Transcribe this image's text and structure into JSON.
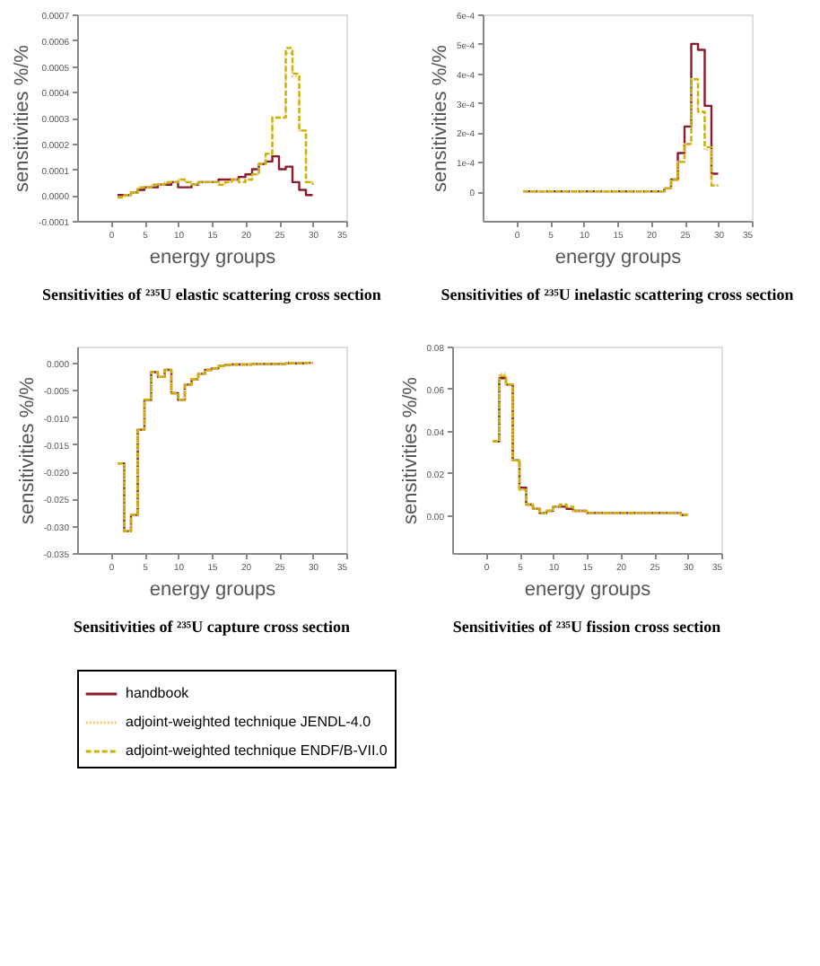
{
  "chart_data": [
    {
      "type": "step",
      "title": "Sensitivities of ²³⁵U elastic scattering cross section",
      "xlabel": "energy groups",
      "ylabel": "sensitivities %/%",
      "xlim": [
        -5,
        35
      ],
      "xticks": [
        0,
        5,
        10,
        15,
        20,
        25,
        30,
        35
      ],
      "ylim": [
        -0.0001,
        0.0007
      ],
      "yticks": [
        -0.0001,
        {
          "value": 0,
          "label": "0.0000"
        },
        0.0001,
        0.0002,
        0.0003,
        0.0004,
        0.0005,
        0.0006,
        0.0007
      ],
      "legend": "bottom",
      "x": [
        1,
        2,
        3,
        4,
        5,
        6,
        7,
        8,
        9,
        10,
        11,
        12,
        13,
        14,
        15,
        16,
        17,
        18,
        19,
        20,
        21,
        22,
        23,
        24,
        25,
        26,
        27,
        28,
        29,
        30
      ],
      "series": [
        {
          "name": "handbook",
          "color": "#8b1a2b",
          "line_style": "solid",
          "values": [
            0,
            0,
            1e-05,
            2e-05,
            3e-05,
            3e-05,
            4e-05,
            4e-05,
            5e-05,
            3e-05,
            3e-05,
            4e-05,
            5e-05,
            5e-05,
            5e-05,
            6e-05,
            6e-05,
            6e-05,
            7e-05,
            8e-05,
            0.0001,
            0.00012,
            0.00013,
            0.00015,
            0.0001,
            0.00011,
            5e-05,
            2e-05,
            0,
            0
          ]
        },
        {
          "name": "adjoint-weighted technique JENDL-4.0",
          "color": "#f2c879",
          "line_style": "dotted",
          "values": [
            -1e-05,
            0,
            1e-05,
            3e-05,
            3e-05,
            4e-05,
            4e-05,
            5e-05,
            5e-05,
            6e-05,
            5e-05,
            4e-05,
            5e-05,
            5e-05,
            5e-05,
            4e-05,
            5e-05,
            6e-05,
            5e-05,
            6e-05,
            8e-05,
            0.00012,
            0.00016,
            0.0003,
            0.0003,
            0.00055,
            0.00046,
            0.00025,
            5e-05,
            4e-05
          ]
        },
        {
          "name": "adjoint-weighted technique ENDF/B-VII.0",
          "color": "#c9b200",
          "line_style": "dashed",
          "values": [
            -1e-05,
            0,
            1e-05,
            3e-05,
            3e-05,
            4e-05,
            4e-05,
            5e-05,
            5e-05,
            6e-05,
            5e-05,
            4e-05,
            5e-05,
            5e-05,
            5e-05,
            4e-05,
            5e-05,
            6e-05,
            5e-05,
            6e-05,
            8e-05,
            0.00012,
            0.00016,
            0.0003,
            0.0003,
            0.00057,
            0.00047,
            0.00025,
            5e-05,
            4e-05
          ]
        }
      ]
    },
    {
      "type": "step",
      "title": "Sensitivities of ²³⁵U inelastic scattering cross section",
      "xlabel": "energy groups",
      "ylabel": "sensitivities %/%",
      "xlim": [
        -5,
        35
      ],
      "xticks": [
        0,
        5,
        10,
        15,
        20,
        25,
        30,
        35
      ],
      "ylim": [
        -0.0001,
        0.0006
      ],
      "yticks": [
        {
          "value": 0,
          "label": "0"
        },
        {
          "value": 0.0001,
          "label": "1e-4"
        },
        {
          "value": 0.0002,
          "label": "2e-4"
        },
        {
          "value": 0.0003,
          "label": "3e-4"
        },
        {
          "value": 0.0004,
          "label": "4e-4"
        },
        {
          "value": 0.0005,
          "label": "5e-4"
        },
        {
          "value": 0.0006,
          "label": "6e-4"
        }
      ],
      "legend": "bottom",
      "x": [
        1,
        2,
        3,
        4,
        5,
        6,
        7,
        8,
        9,
        10,
        11,
        12,
        13,
        14,
        15,
        16,
        17,
        18,
        19,
        20,
        21,
        22,
        23,
        24,
        25,
        26,
        27,
        28,
        29,
        30
      ],
      "series": [
        {
          "name": "handbook",
          "color": "#8b1a2b",
          "line_style": "solid",
          "values": [
            0,
            0,
            0,
            0,
            0,
            0,
            0,
            0,
            0,
            0,
            0,
            0,
            0,
            0,
            0,
            0,
            0,
            0,
            0,
            0,
            0,
            1e-05,
            4e-05,
            0.00013,
            0.00022,
            0.0005,
            0.00048,
            0.00029,
            6e-05,
            6e-05
          ]
        },
        {
          "name": "adjoint-weighted technique JENDL-4.0",
          "color": "#f2c879",
          "line_style": "dotted",
          "values": [
            0,
            0,
            0,
            0,
            0,
            0,
            0,
            0,
            0,
            0,
            0,
            0,
            0,
            0,
            0,
            0,
            0,
            0,
            0,
            0,
            0,
            1e-05,
            4e-05,
            0.0001,
            0.00016,
            0.00038,
            0.00027,
            0.00014,
            2e-05,
            2e-05
          ]
        },
        {
          "name": "adjoint-weighted technique ENDF/B-VII.0",
          "color": "#c9b200",
          "line_style": "dashed",
          "values": [
            0,
            0,
            0,
            0,
            0,
            0,
            0,
            0,
            0,
            0,
            0,
            0,
            0,
            0,
            0,
            0,
            0,
            0,
            0,
            0,
            0,
            1e-05,
            4e-05,
            0.0001,
            0.00016,
            0.00038,
            0.00027,
            0.00015,
            2e-05,
            2e-05
          ]
        }
      ]
    },
    {
      "type": "step",
      "title": "Sensitivities of ²³⁵U capture cross section",
      "xlabel": "energy groups",
      "ylabel": "sensitivities %/%",
      "xlim": [
        -5,
        35
      ],
      "xticks": [
        0,
        5,
        10,
        15,
        20,
        25,
        30,
        35
      ],
      "ylim": [
        -0.035,
        0.003
      ],
      "yticks": [
        -0.035,
        {
          "value": -0.03,
          "label": "-0.030"
        },
        -0.025,
        {
          "value": -0.02,
          "label": "-0.020"
        },
        -0.015,
        {
          "value": -0.01,
          "label": "-0.010"
        },
        -0.005,
        {
          "value": 0,
          "label": "0.000"
        }
      ],
      "legend": "bottom",
      "x": [
        1,
        2,
        3,
        4,
        5,
        6,
        7,
        8,
        9,
        10,
        11,
        12,
        13,
        14,
        15,
        16,
        17,
        18,
        19,
        20,
        21,
        22,
        23,
        24,
        25,
        26,
        27,
        28,
        29,
        30
      ],
      "series": [
        {
          "name": "handbook",
          "color": "#8b1a2b",
          "line_style": "solid",
          "values": [
            -0.0185,
            -0.031,
            -0.028,
            -0.0123,
            -0.0068,
            -0.0017,
            -0.0026,
            -0.0013,
            -0.0056,
            -0.0068,
            -0.004,
            -0.003,
            -0.002,
            -0.0013,
            -0.001,
            -0.0006,
            -0.0004,
            -0.0003,
            -0.0003,
            -0.0003,
            -0.0002,
            -0.0002,
            -0.0002,
            -0.0002,
            -0.0002,
            -0.0001,
            -0.0001,
            -0.0001,
            0,
            0
          ]
        },
        {
          "name": "adjoint-weighted technique JENDL-4.0",
          "color": "#f2c879",
          "line_style": "dotted",
          "values": [
            -0.0185,
            -0.031,
            -0.028,
            -0.0123,
            -0.0068,
            -0.0017,
            -0.0026,
            -0.0013,
            -0.0056,
            -0.0068,
            -0.004,
            -0.003,
            -0.002,
            -0.0013,
            -0.001,
            -0.0006,
            -0.0004,
            -0.0003,
            -0.0003,
            -0.0003,
            -0.0002,
            -0.0002,
            -0.0002,
            -0.0002,
            -0.0002,
            -0.0001,
            -0.0001,
            -0.0001,
            0,
            0
          ]
        },
        {
          "name": "adjoint-weighted technique ENDF/B-VII.0",
          "color": "#c9b200",
          "line_style": "dashed",
          "values": [
            -0.0185,
            -0.031,
            -0.028,
            -0.0123,
            -0.0068,
            -0.0017,
            -0.0026,
            -0.0013,
            -0.0056,
            -0.0068,
            -0.004,
            -0.003,
            -0.002,
            -0.0013,
            -0.001,
            -0.0006,
            -0.0004,
            -0.0003,
            -0.0003,
            -0.0003,
            -0.0002,
            -0.0002,
            -0.0002,
            -0.0002,
            -0.0002,
            -0.0001,
            -0.0001,
            -0.0001,
            0,
            0
          ]
        }
      ]
    },
    {
      "type": "step",
      "title": "Sensitivities of ²³⁵U fission cross section",
      "xlabel": "energy groups",
      "ylabel": "sensitivities %/%",
      "xlim": [
        -5,
        35
      ],
      "xticks": [
        0,
        5,
        10,
        15,
        20,
        25,
        30,
        35
      ],
      "ylim": [
        -0.018,
        0.08
      ],
      "yticks": [
        {
          "value": 0,
          "label": "0.00"
        },
        0.02,
        0.04,
        0.06,
        {
          "value": 0.08,
          "label": "0.08"
        }
      ],
      "legend": "bottom",
      "x": [
        1,
        2,
        3,
        4,
        5,
        6,
        7,
        8,
        9,
        10,
        11,
        12,
        13,
        14,
        15,
        16,
        17,
        18,
        19,
        20,
        21,
        22,
        23,
        24,
        25,
        26,
        27,
        28,
        29,
        30
      ],
      "series": [
        {
          "name": "handbook",
          "color": "#8b1a2b",
          "line_style": "solid",
          "values": [
            0.035,
            0.065,
            0.062,
            0.026,
            0.013,
            0.005,
            0.003,
            0.001,
            0.002,
            0.004,
            0.004,
            0.003,
            0.002,
            0.002,
            0.001,
            0.001,
            0.001,
            0.001,
            0.001,
            0.001,
            0.001,
            0.001,
            0.001,
            0.001,
            0.001,
            0.001,
            0.001,
            0.001,
            0,
            0
          ]
        },
        {
          "name": "adjoint-weighted technique JENDL-4.0",
          "color": "#f2c879",
          "line_style": "dotted",
          "values": [
            0.035,
            0.067,
            0.062,
            0.026,
            0.012,
            0.005,
            0.003,
            0.001,
            0.002,
            0.004,
            0.005,
            0.004,
            0.002,
            0.002,
            0.001,
            0.001,
            0.001,
            0.001,
            0.001,
            0.001,
            0.001,
            0.001,
            0.001,
            0.001,
            0.001,
            0.001,
            0.001,
            0.001,
            0,
            0
          ]
        },
        {
          "name": "adjoint-weighted technique ENDF/B-VII.0",
          "color": "#c9b200",
          "line_style": "dashed",
          "values": [
            0.035,
            0.066,
            0.062,
            0.026,
            0.012,
            0.005,
            0.003,
            0.001,
            0.002,
            0.004,
            0.005,
            0.004,
            0.002,
            0.002,
            0.001,
            0.001,
            0.001,
            0.001,
            0.001,
            0.001,
            0.001,
            0.001,
            0.001,
            0.001,
            0.001,
            0.001,
            0.001,
            0.001,
            0,
            0
          ]
        }
      ]
    }
  ]
}
